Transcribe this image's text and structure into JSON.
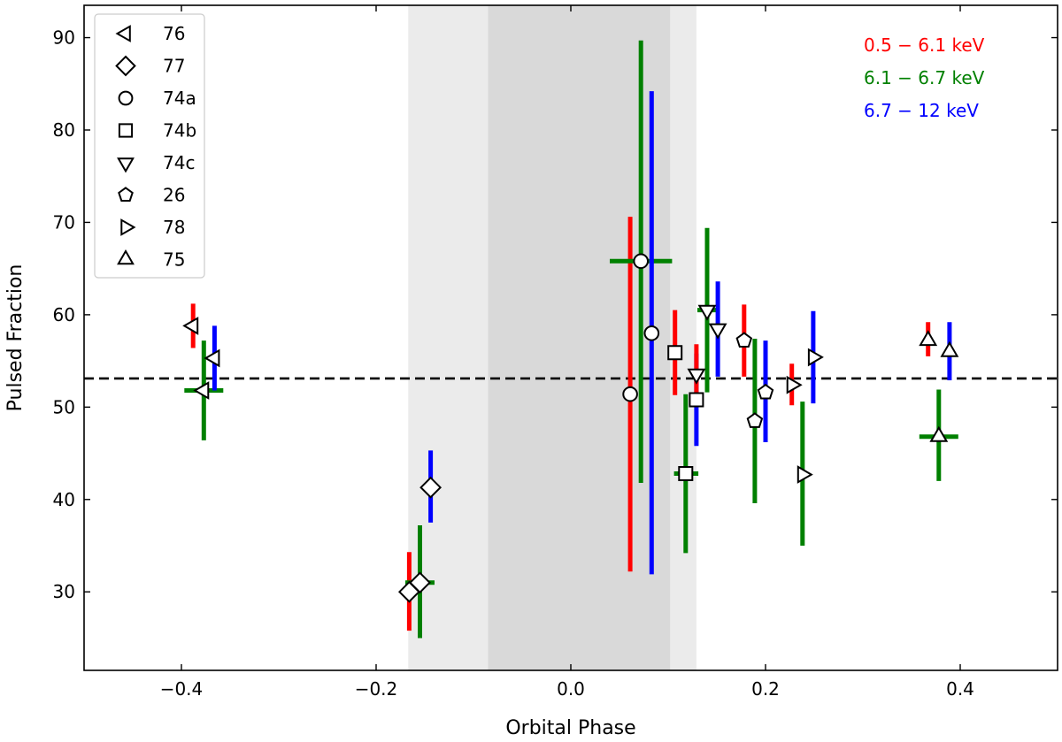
{
  "chart_data": {
    "type": "scatter",
    "xlabel": "Orbital Phase",
    "ylabel": "Pulsed Fraction",
    "xlim": [
      -0.5,
      0.5
    ],
    "ylim": [
      21.5,
      93.5
    ],
    "xticks": [
      -0.4,
      -0.2,
      0.0,
      0.2,
      0.4
    ],
    "xtick_labels": [
      "−0.4",
      "−0.2",
      "0.0",
      "0.2",
      "0.4"
    ],
    "yticks": [
      30,
      40,
      50,
      60,
      70,
      80,
      90
    ],
    "ytick_labels": [
      "30",
      "40",
      "50",
      "60",
      "70",
      "80",
      "90"
    ],
    "grid": false,
    "reference_line": {
      "y": 53.1,
      "style": "dashed",
      "color": "#000000"
    },
    "shaded_regions": [
      {
        "x0": -0.167,
        "x1": 0.129,
        "color": "#ebebeb"
      },
      {
        "x0": -0.085,
        "x1": 0.102,
        "color": "#d9d9d9"
      }
    ],
    "bands": [
      {
        "label": "0.5 − 6.1 keV",
        "color": "#ff0000"
      },
      {
        "label": "6.1 − 6.7 keV",
        "color": "#008000"
      },
      {
        "label": "6.7 − 12 keV",
        "color": "#0000ff"
      }
    ],
    "legend": {
      "position": "top-left",
      "entries": [
        {
          "label": "76",
          "marker": "triangle-left"
        },
        {
          "label": "77",
          "marker": "diamond"
        },
        {
          "label": "74a",
          "marker": "circle"
        },
        {
          "label": "74b",
          "marker": "square"
        },
        {
          "label": "74c",
          "marker": "triangle-down"
        },
        {
          "label": "26",
          "marker": "pentagon"
        },
        {
          "label": "78",
          "marker": "triangle-right"
        },
        {
          "label": "75",
          "marker": "triangle-up"
        }
      ]
    },
    "points": [
      {
        "obs": "76",
        "band": 0,
        "x": -0.388,
        "y": 58.8,
        "ylo": 56.4,
        "yhi": 61.2
      },
      {
        "obs": "76",
        "band": 1,
        "x": -0.377,
        "y": 51.8,
        "ylo": 46.4,
        "yhi": 57.2,
        "xlo": -0.397,
        "xhi": -0.357
      },
      {
        "obs": "76",
        "band": 2,
        "x": -0.366,
        "y": 55.3,
        "ylo": 51.8,
        "yhi": 58.8
      },
      {
        "obs": "77",
        "band": 0,
        "x": -0.166,
        "y": 30.0,
        "ylo": 25.8,
        "yhi": 34.3
      },
      {
        "obs": "77",
        "band": 1,
        "x": -0.155,
        "y": 31.0,
        "ylo": 25.0,
        "yhi": 37.2,
        "xlo": -0.17,
        "xhi": -0.14
      },
      {
        "obs": "77",
        "band": 2,
        "x": -0.144,
        "y": 41.3,
        "ylo": 37.5,
        "yhi": 45.3
      },
      {
        "obs": "74a",
        "band": 0,
        "x": 0.061,
        "y": 51.4,
        "ylo": 32.2,
        "yhi": 70.6
      },
      {
        "obs": "74a",
        "band": 1,
        "x": 0.072,
        "y": 65.8,
        "ylo": 41.8,
        "yhi": 89.7,
        "xlo": 0.04,
        "xhi": 0.104
      },
      {
        "obs": "74a",
        "band": 2,
        "x": 0.083,
        "y": 58.0,
        "ylo": 31.9,
        "yhi": 84.2
      },
      {
        "obs": "74b",
        "band": 0,
        "x": 0.107,
        "y": 55.9,
        "ylo": 51.3,
        "yhi": 60.5
      },
      {
        "obs": "74b",
        "band": 1,
        "x": 0.118,
        "y": 42.8,
        "ylo": 34.2,
        "yhi": 51.4,
        "xlo": 0.106,
        "xhi": 0.131
      },
      {
        "obs": "74b",
        "band": 2,
        "x": 0.129,
        "y": 50.8,
        "ylo": 45.8,
        "yhi": 55.8
      },
      {
        "obs": "74c",
        "band": 0,
        "x": 0.129,
        "y": 53.6,
        "ylo": 50.5,
        "yhi": 56.8
      },
      {
        "obs": "74c",
        "band": 1,
        "x": 0.14,
        "y": 60.5,
        "ylo": 51.6,
        "yhi": 69.4,
        "xlo": 0.13,
        "xhi": 0.15
      },
      {
        "obs": "74c",
        "band": 2,
        "x": 0.151,
        "y": 58.5,
        "ylo": 53.3,
        "yhi": 63.6
      },
      {
        "obs": "26",
        "band": 0,
        "x": 0.178,
        "y": 57.2,
        "ylo": 53.3,
        "yhi": 61.1
      },
      {
        "obs": "26",
        "band": 1,
        "x": 0.189,
        "y": 48.5,
        "ylo": 39.6,
        "yhi": 57.4
      },
      {
        "obs": "26",
        "band": 2,
        "x": 0.2,
        "y": 51.6,
        "ylo": 46.2,
        "yhi": 57.2
      },
      {
        "obs": "78",
        "band": 0,
        "x": 0.227,
        "y": 52.4,
        "ylo": 50.2,
        "yhi": 54.7
      },
      {
        "obs": "78",
        "band": 1,
        "x": 0.238,
        "y": 42.7,
        "ylo": 35.0,
        "yhi": 50.6
      },
      {
        "obs": "78",
        "band": 2,
        "x": 0.249,
        "y": 55.4,
        "ylo": 50.4,
        "yhi": 60.4
      },
      {
        "obs": "75",
        "band": 0,
        "x": 0.367,
        "y": 57.2,
        "ylo": 55.5,
        "yhi": 59.2
      },
      {
        "obs": "75",
        "band": 1,
        "x": 0.378,
        "y": 46.8,
        "ylo": 42.0,
        "yhi": 51.9,
        "xlo": 0.358,
        "xhi": 0.398
      },
      {
        "obs": "75",
        "band": 2,
        "x": 0.389,
        "y": 56.0,
        "ylo": 52.9,
        "yhi": 59.2
      }
    ]
  }
}
